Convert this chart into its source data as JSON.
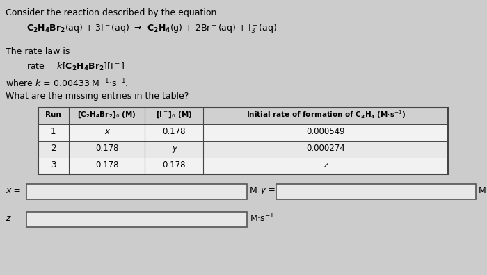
{
  "title_text": "Consider the reaction described by the equation",
  "rate_law_intro": "The rate law is",
  "k_value": "where k = 0.00433 M⁻¹·s⁻¹.",
  "question": "What are the missing entries in the table?",
  "table_data": [
    [
      "1",
      "x",
      "0.178",
      "0.000549"
    ],
    [
      "2",
      "0.178",
      "y",
      "0.000274"
    ],
    [
      "3",
      "0.178",
      "0.178",
      "z"
    ]
  ],
  "bg_color": "#cccccc",
  "text_color": "#000000"
}
